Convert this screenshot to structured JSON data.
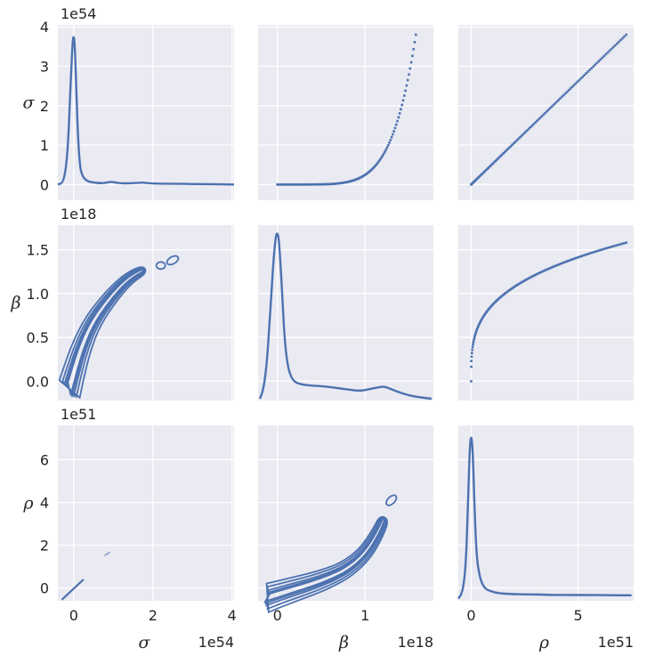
{
  "chart_data": {
    "type": "pairplot",
    "variables": [
      {
        "key": "sigma",
        "label": "σ",
        "offset": "1e54",
        "range": [
          -0.4,
          4.05
        ],
        "ticks": [
          0,
          1,
          2,
          3,
          4
        ],
        "xticks": [
          0,
          2,
          4
        ]
      },
      {
        "key": "beta",
        "label": "β",
        "offset": "1e18",
        "range": [
          -0.22,
          1.78
        ],
        "ticks": [
          0.0,
          0.5,
          1.0,
          1.5
        ],
        "tick_labels": [
          "0.0",
          "0.5",
          "1.0",
          "1.5"
        ],
        "xticks": [
          0,
          1
        ]
      },
      {
        "key": "rho",
        "label": "ρ",
        "offset": "1e51",
        "range": [
          -0.6,
          7.6
        ],
        "ticks": [
          0,
          2,
          4,
          6
        ],
        "xticks": [
          0,
          5
        ]
      }
    ],
    "colors": {
      "line": "#4c72b0",
      "background": "#eaeaf2",
      "grid": "#ffffff",
      "contour_light": "#9aa7cf"
    },
    "grid": true,
    "diagonal": {
      "sigma": {
        "x": [
          -0.4,
          -0.25,
          -0.15,
          -0.08,
          -0.03,
          0.0,
          0.03,
          0.06,
          0.1,
          0.15,
          0.22,
          0.35,
          0.5,
          0.7,
          0.85,
          0.95,
          1.05,
          1.2,
          1.4,
          1.6,
          1.75,
          1.9,
          2.2,
          2.6,
          3.0,
          3.5,
          4.05
        ],
        "density": [
          0.0,
          0.05,
          0.8,
          2.5,
          3.6,
          3.8,
          3.5,
          2.6,
          1.4,
          0.5,
          0.2,
          0.08,
          0.05,
          0.03,
          0.05,
          0.07,
          0.05,
          0.03,
          0.03,
          0.04,
          0.05,
          0.03,
          0.02,
          0.02,
          0.01,
          0.01,
          0.0
        ]
      },
      "beta": {
        "x": [
          -0.2,
          -0.16,
          -0.12,
          -0.08,
          -0.05,
          -0.02,
          0.0,
          0.02,
          0.05,
          0.08,
          0.12,
          0.17,
          0.22,
          0.3,
          0.4,
          0.55,
          0.7,
          0.85,
          0.95,
          1.05,
          1.15,
          1.22,
          1.3,
          1.4,
          1.5,
          1.6,
          1.76
        ],
        "density": [
          -0.2,
          -0.1,
          0.2,
          0.8,
          1.3,
          1.65,
          1.7,
          1.6,
          1.1,
          0.5,
          0.15,
          0.02,
          -0.02,
          -0.04,
          -0.05,
          -0.06,
          -0.08,
          -0.1,
          -0.11,
          -0.09,
          -0.07,
          -0.06,
          -0.09,
          -0.13,
          -0.16,
          -0.18,
          -0.2
        ]
      },
      "rho": {
        "x": [
          -0.6,
          -0.4,
          -0.25,
          -0.15,
          -0.07,
          0.0,
          0.07,
          0.15,
          0.25,
          0.4,
          0.6,
          0.9,
          1.3,
          1.8,
          2.5,
          3.0,
          3.5,
          4.5,
          5.5,
          6.5,
          7.5
        ],
        "density": [
          -0.5,
          -0.2,
          1.0,
          3.8,
          6.5,
          7.2,
          6.5,
          4.0,
          1.5,
          0.5,
          0.0,
          -0.15,
          -0.25,
          -0.28,
          -0.3,
          -0.3,
          -0.32,
          -0.33,
          -0.33,
          -0.34,
          -0.34
        ]
      }
    },
    "scatter_fits": {
      "sigma_vs_beta": {
        "exponent": 6,
        "beta_range": [
          0.0,
          1.58
        ],
        "sigma_max": 3.8
      },
      "sigma_vs_rho": {
        "rho_range": [
          0.0,
          7.25
        ],
        "sigma_max": 3.8
      },
      "beta_vs_rho": {
        "exponent": 0.3,
        "rho_range": [
          0.0,
          7.25
        ],
        "beta_max": 1.58
      }
    },
    "contour_points": {
      "beta_vs_sigma": [
        [
          -0.15,
          -0.15
        ],
        [
          0.0,
          0.1
        ],
        [
          0.2,
          0.4
        ],
        [
          0.5,
          0.7
        ],
        [
          1.0,
          1.0
        ],
        [
          1.4,
          1.18
        ],
        [
          1.8,
          1.28
        ],
        [
          2.2,
          1.32
        ],
        [
          2.5,
          1.38
        ]
      ],
      "rho_vs_beta": [
        [
          -0.15,
          -0.5
        ],
        [
          0.0,
          -0.3
        ],
        [
          0.2,
          -0.05
        ],
        [
          0.4,
          0.2
        ],
        [
          0.6,
          0.5
        ],
        [
          0.8,
          0.9
        ],
        [
          1.0,
          1.6
        ],
        [
          1.15,
          2.6
        ],
        [
          1.22,
          3.3
        ],
        [
          1.3,
          4.1
        ]
      ],
      "rho_vs_sigma": [
        [
          -0.3,
          -0.55
        ],
        [
          0.0,
          -0.1
        ],
        [
          0.25,
          0.4
        ],
        [
          0.85,
          1.6
        ]
      ]
    }
  }
}
